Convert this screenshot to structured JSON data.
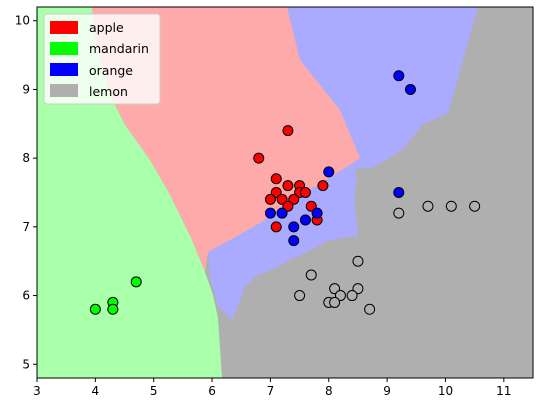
{
  "chart_data": {
    "type": "scatter",
    "title": "",
    "xlabel": "",
    "ylabel": "",
    "xlim": [
      3,
      11.5
    ],
    "ylim": [
      4.8,
      10.2
    ],
    "xticks": [
      "3",
      "4",
      "5",
      "6",
      "7",
      "8",
      "9",
      "10",
      "11"
    ],
    "yticks": [
      "5",
      "6",
      "7",
      "8",
      "9",
      "10"
    ],
    "grid": false,
    "legend_position": "top-left",
    "legend": [
      {
        "label": "apple",
        "color": "#ff0000"
      },
      {
        "label": "mandarin",
        "color": "#00ff00"
      },
      {
        "label": "orange",
        "color": "#0000ff"
      },
      {
        "label": "lemon",
        "color": "#afafaf"
      }
    ],
    "region_colors": {
      "apple": "#ffaaaa",
      "mandarin": "#aaffaa",
      "orange": "#aaaaff",
      "lemon": "#afafaf"
    },
    "series": [
      {
        "class": "apple",
        "color": "#ff0000",
        "points": [
          [
            6.8,
            8.0
          ],
          [
            7.3,
            8.4
          ],
          [
            7.1,
            7.7
          ],
          [
            7.3,
            7.6
          ],
          [
            7.5,
            7.6
          ],
          [
            7.5,
            7.5
          ],
          [
            7.6,
            7.5
          ],
          [
            7.9,
            7.6
          ],
          [
            7.1,
            7.5
          ],
          [
            7.0,
            7.4
          ],
          [
            7.2,
            7.4
          ],
          [
            7.4,
            7.4
          ],
          [
            7.7,
            7.3
          ],
          [
            7.3,
            7.3
          ],
          [
            7.8,
            7.1
          ],
          [
            7.1,
            7.0
          ]
        ]
      },
      {
        "class": "mandarin",
        "color": "#00ff00",
        "points": [
          [
            4.7,
            6.2
          ],
          [
            4.3,
            5.9
          ],
          [
            4.0,
            5.8
          ],
          [
            4.3,
            5.8
          ]
        ]
      },
      {
        "class": "orange",
        "color": "#0000ff",
        "points": [
          [
            9.2,
            9.2
          ],
          [
            9.4,
            9.0
          ],
          [
            8.0,
            7.8
          ],
          [
            9.2,
            7.5
          ],
          [
            7.0,
            7.2
          ],
          [
            7.2,
            7.2
          ],
          [
            7.8,
            7.2
          ],
          [
            7.6,
            7.1
          ],
          [
            7.4,
            7.0
          ],
          [
            7.4,
            6.8
          ]
        ]
      },
      {
        "class": "lemon",
        "color": "#afafaf",
        "points": [
          [
            9.7,
            7.3
          ],
          [
            10.1,
            7.3
          ],
          [
            10.5,
            7.3
          ],
          [
            9.2,
            7.2
          ],
          [
            8.5,
            6.5
          ],
          [
            7.7,
            6.3
          ],
          [
            8.1,
            6.1
          ],
          [
            8.5,
            6.1
          ],
          [
            7.5,
            6.0
          ],
          [
            8.2,
            6.0
          ],
          [
            8.4,
            6.0
          ],
          [
            8.0,
            5.9
          ],
          [
            8.1,
            5.9
          ],
          [
            8.7,
            5.8
          ]
        ]
      }
    ]
  }
}
